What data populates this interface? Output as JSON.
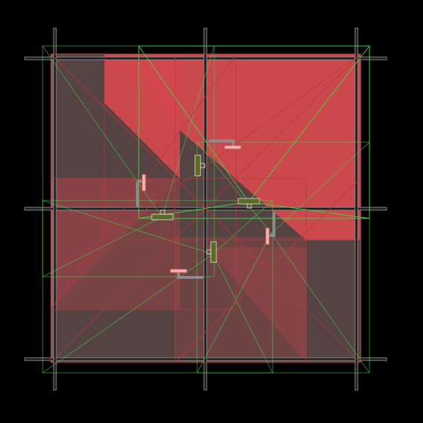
{
  "scene": {
    "background": "#000000",
    "palette": {
      "frame_stroke": "#8a8a8a",
      "frame_fill": "#1e1e1e",
      "tile_fill": "#e0494f",
      "tile_shadow": "#5a4646",
      "wire_green": "#3fd83f",
      "wire_red": "#b83a3a",
      "marker_pink": "#f3b3b3",
      "marker_red": "#d24a4a",
      "marker_olive": "#5a6a2a",
      "marker_outline": "#f0f0d0",
      "connector_gray": "#8c8c8c"
    }
  }
}
